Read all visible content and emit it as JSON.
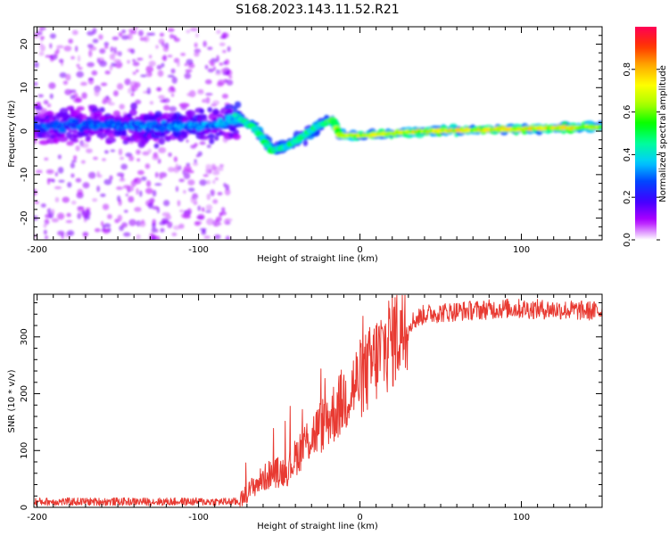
{
  "title": "S168.2023.143.11.52.R21",
  "chart_data": [
    {
      "type": "heatmap",
      "xlabel": "Height of straight line (km)",
      "ylabel": "Frequency (Hz)",
      "xlim": [
        -202,
        150
      ],
      "ylim": [
        -25,
        24
      ],
      "xticks": [
        -200,
        -100,
        0,
        100
      ],
      "yticks": [
        -20,
        -10,
        0,
        10,
        20
      ],
      "colorbar": {
        "label": "Normalized spectral amplitude",
        "range": [
          0.0,
          1.0
        ],
        "ticks": [
          "0.0",
          "0.2",
          "0.4",
          "0.6",
          "0.8"
        ],
        "tick_values": [
          0.0,
          0.2,
          0.4,
          0.6,
          0.8
        ],
        "colors": [
          "#ffffff",
          "#b000ff",
          "#4000ff",
          "#0044ff",
          "#00ccff",
          "#00ff99",
          "#00ff00",
          "#aaff00",
          "#ffff00",
          "#ffaa00",
          "#ff3300",
          "#ff0055"
        ]
      },
      "ridge": [
        {
          "x": -200,
          "f": 1.0,
          "a": 0.25
        },
        {
          "x": -160,
          "f": 1.5,
          "a": 0.25
        },
        {
          "x": -120,
          "f": 1.0,
          "a": 0.28
        },
        {
          "x": -90,
          "f": 1.5,
          "a": 0.28
        },
        {
          "x": -75,
          "f": 3.0,
          "a": 0.35
        },
        {
          "x": -65,
          "f": 0.5,
          "a": 0.42
        },
        {
          "x": -55,
          "f": -4.5,
          "a": 0.45
        },
        {
          "x": -45,
          "f": -3.5,
          "a": 0.42
        },
        {
          "x": -35,
          "f": -1.0,
          "a": 0.42
        },
        {
          "x": -25,
          "f": 1.5,
          "a": 0.42
        },
        {
          "x": -17,
          "f": 2.5,
          "a": 0.5
        },
        {
          "x": -12,
          "f": -1.0,
          "a": 0.6
        },
        {
          "x": 0,
          "f": -1.0,
          "a": 0.6
        },
        {
          "x": 40,
          "f": 0.0,
          "a": 0.62
        },
        {
          "x": 100,
          "f": 0.5,
          "a": 0.65
        },
        {
          "x": 150,
          "f": 1.0,
          "a": 0.6
        }
      ]
    },
    {
      "type": "line",
      "xlabel": "Height of straight line (km)",
      "ylabel": "SNR (10 * v/v)",
      "xlim": [
        -202,
        150
      ],
      "ylim": [
        0,
        375
      ],
      "xticks": [
        -200,
        -100,
        0,
        100
      ],
      "yticks": [
        0,
        100,
        200,
        300
      ],
      "series": [
        {
          "name": "SNR",
          "color": "#e83a32",
          "trend": [
            {
              "x": -202,
              "y": 10
            },
            {
              "x": -75,
              "y": 10
            },
            {
              "x": -65,
              "y": 40
            },
            {
              "x": -55,
              "y": 60
            },
            {
              "x": -45,
              "y": 65
            },
            {
              "x": -35,
              "y": 110
            },
            {
              "x": -25,
              "y": 140
            },
            {
              "x": -15,
              "y": 170
            },
            {
              "x": -5,
              "y": 210
            },
            {
              "x": 5,
              "y": 240
            },
            {
              "x": 15,
              "y": 280
            },
            {
              "x": 25,
              "y": 315
            },
            {
              "x": 40,
              "y": 340
            },
            {
              "x": 60,
              "y": 345
            },
            {
              "x": 90,
              "y": 350
            },
            {
              "x": 120,
              "y": 348
            },
            {
              "x": 150,
              "y": 345
            }
          ]
        }
      ]
    }
  ]
}
